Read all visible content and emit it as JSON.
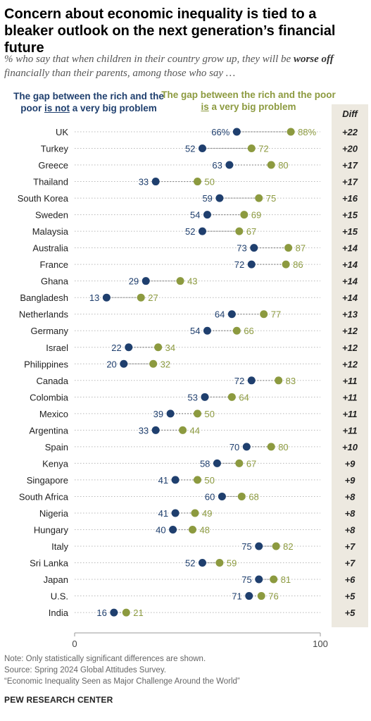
{
  "title": "Concern about economic inequality is tied to a bleaker outlook on the next generation’s financial future",
  "subtitle": {
    "pre": "% who say that when children in their country grow up, they will be ",
    "bold": "worse off",
    "post": " financially than their parents, among those who say …"
  },
  "legend": {
    "series_a_pre": "The gap between the rich and the poor ",
    "series_a_emph": "is not",
    "series_a_post": " a very big problem",
    "series_b_pre": "The gap between the rich and the poor ",
    "series_b_emph": "is",
    "series_b_post": " a very big problem"
  },
  "diff_header": "Diff",
  "notes": [
    "Note: Only statistically significant differences are shown.",
    "Source: Spring 2024 Global Attitudes Survey.",
    "“Economic Inequality Seen as Major Challenge Around the World”"
  ],
  "org": "PEW RESEARCH CENTER",
  "colors": {
    "series_a": "#1f3f6e",
    "series_b": "#8c9a3f",
    "diff_bg": "#ede9e0"
  },
  "chart_data": {
    "type": "dot",
    "xlim": [
      0,
      100
    ],
    "x_ticks": [
      "0",
      "100"
    ],
    "categories": [
      "UK",
      "Turkey",
      "Greece",
      "Thailand",
      "South Korea",
      "Sweden",
      "Malaysia",
      "Australia",
      "France",
      "Ghana",
      "Bangladesh",
      "Netherlands",
      "Germany",
      "Israel",
      "Philippines",
      "Canada",
      "Colombia",
      "Mexico",
      "Argentina",
      "Spain",
      "Kenya",
      "Singapore",
      "South Africa",
      "Nigeria",
      "Hungary",
      "Italy",
      "Sri Lanka",
      "Japan",
      "U.S.",
      "India"
    ],
    "series": [
      {
        "name": "The gap between the rich and the poor is not a very big problem",
        "values": [
          66,
          52,
          63,
          33,
          59,
          54,
          52,
          73,
          72,
          29,
          13,
          64,
          54,
          22,
          20,
          72,
          53,
          39,
          33,
          70,
          58,
          41,
          60,
          41,
          40,
          75,
          52,
          75,
          71,
          16
        ]
      },
      {
        "name": "The gap between the rich and the poor is a very big problem",
        "values": [
          88,
          72,
          80,
          50,
          75,
          69,
          67,
          87,
          86,
          43,
          27,
          77,
          66,
          34,
          32,
          83,
          64,
          50,
          44,
          80,
          67,
          50,
          68,
          49,
          48,
          82,
          59,
          81,
          76,
          21
        ]
      }
    ],
    "diff": [
      "+22",
      "+20",
      "+17",
      "+17",
      "+16",
      "+15",
      "+15",
      "+14",
      "+14",
      "+14",
      "+14",
      "+13",
      "+12",
      "+12",
      "+12",
      "+11",
      "+11",
      "+11",
      "+11",
      "+10",
      "+9",
      "+9",
      "+8",
      "+8",
      "+8",
      "+7",
      "+7",
      "+6",
      "+5",
      "+5"
    ],
    "first_value_suffix": "%"
  }
}
